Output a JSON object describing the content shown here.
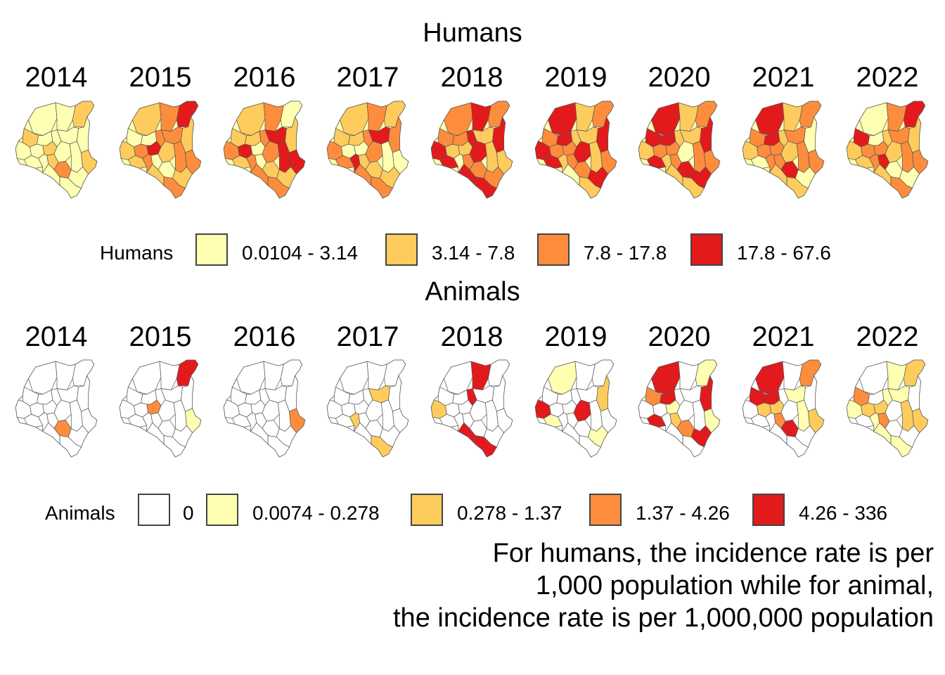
{
  "humans": {
    "title": "Humans",
    "years": [
      "2014",
      "2015",
      "2016",
      "2017",
      "2018",
      "2019",
      "2020",
      "2021",
      "2022"
    ],
    "maps": [
      {
        "year": "2014",
        "class_mix": [
          0.7,
          0.25,
          0.05,
          0.0
        ]
      },
      {
        "year": "2015",
        "class_mix": [
          0.2,
          0.3,
          0.4,
          0.1
        ]
      },
      {
        "year": "2016",
        "class_mix": [
          0.15,
          0.3,
          0.35,
          0.2
        ]
      },
      {
        "year": "2017",
        "class_mix": [
          0.2,
          0.3,
          0.4,
          0.1
        ]
      },
      {
        "year": "2018",
        "class_mix": [
          0.05,
          0.25,
          0.35,
          0.35
        ]
      },
      {
        "year": "2019",
        "class_mix": [
          0.05,
          0.25,
          0.35,
          0.35
        ]
      },
      {
        "year": "2020",
        "class_mix": [
          0.05,
          0.3,
          0.35,
          0.3
        ]
      },
      {
        "year": "2021",
        "class_mix": [
          0.15,
          0.25,
          0.45,
          0.15
        ]
      },
      {
        "year": "2022",
        "class_mix": [
          0.15,
          0.3,
          0.4,
          0.15
        ]
      }
    ],
    "legend": {
      "title": "Humans",
      "items": [
        {
          "label": "0.0104 - 3.14",
          "color": "#ffffb2"
        },
        {
          "label": "3.14 - 7.8",
          "color": "#fecc5c"
        },
        {
          "label": "7.8 - 17.8",
          "color": "#fd8d3c"
        },
        {
          "label": "17.8 - 67.6",
          "color": "#e31a1c"
        }
      ]
    }
  },
  "animals": {
    "title": "Animals",
    "years": [
      "2014",
      "2015",
      "2016",
      "2017",
      "2018",
      "2019",
      "2020",
      "2021",
      "2022"
    ],
    "maps": [
      {
        "year": "2014",
        "class_mix": [
          0.95,
          0.0,
          0.03,
          0.02,
          0.0
        ]
      },
      {
        "year": "2015",
        "class_mix": [
          0.85,
          0.05,
          0.0,
          0.03,
          0.07
        ]
      },
      {
        "year": "2016",
        "class_mix": [
          0.93,
          0.0,
          0.0,
          0.07,
          0.0
        ]
      },
      {
        "year": "2017",
        "class_mix": [
          0.85,
          0.0,
          0.15,
          0.0,
          0.0
        ]
      },
      {
        "year": "2018",
        "class_mix": [
          0.78,
          0.02,
          0.08,
          0.0,
          0.12
        ]
      },
      {
        "year": "2019",
        "class_mix": [
          0.72,
          0.08,
          0.05,
          0.05,
          0.1
        ]
      },
      {
        "year": "2020",
        "class_mix": [
          0.45,
          0.15,
          0.1,
          0.1,
          0.2
        ]
      },
      {
        "year": "2021",
        "class_mix": [
          0.45,
          0.1,
          0.15,
          0.1,
          0.2
        ]
      },
      {
        "year": "2022",
        "class_mix": [
          0.3,
          0.3,
          0.3,
          0.1,
          0.0
        ]
      }
    ],
    "legend": {
      "title": "Animals",
      "items": [
        {
          "label": "0",
          "color": "#ffffff"
        },
        {
          "label": "0.0074 - 0.278",
          "color": "#ffffb2"
        },
        {
          "label": "0.278 - 1.37",
          "color": "#fecc5c"
        },
        {
          "label": "1.37 - 4.26",
          "color": "#fd8d3c"
        },
        {
          "label": "4.26 - 336",
          "color": "#e31a1c"
        }
      ]
    }
  },
  "caption": {
    "line1": "For humans, the incidence rate is per",
    "line2": "1,000 population while for animal,",
    "line3": "the incidence rate is per 1,000,000 population"
  }
}
